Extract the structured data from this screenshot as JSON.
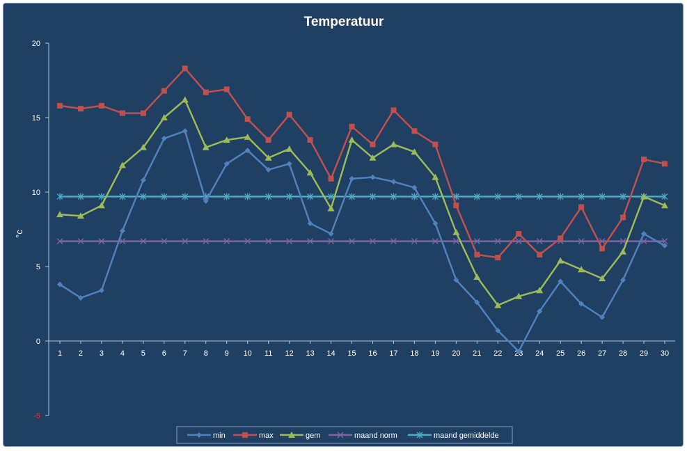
{
  "chart_data": {
    "type": "line",
    "title": "Temperatuur",
    "xlabel": "",
    "ylabel": "°c",
    "ylim": [
      -5,
      20
    ],
    "yticks": [
      20,
      15,
      10,
      5,
      0,
      -5
    ],
    "x": [
      1,
      2,
      3,
      4,
      5,
      6,
      7,
      8,
      9,
      10,
      11,
      12,
      13,
      14,
      15,
      16,
      17,
      18,
      19,
      20,
      21,
      22,
      23,
      24,
      25,
      26,
      27,
      28,
      29,
      30
    ],
    "grid": false,
    "legend_position": "bottom",
    "series": [
      {
        "name": "min",
        "color": "#4f81bd",
        "marker": "diamond",
        "values": [
          3.8,
          2.9,
          3.4,
          7.4,
          10.8,
          13.6,
          14.1,
          9.4,
          11.9,
          12.8,
          11.5,
          11.9,
          7.9,
          7.2,
          10.9,
          11.0,
          10.7,
          10.3,
          7.9,
          4.1,
          2.6,
          0.7,
          -0.7,
          2.0,
          4.0,
          2.5,
          1.6,
          4.1,
          7.2,
          6.4
        ]
      },
      {
        "name": "max",
        "color": "#c0504d",
        "marker": "square",
        "values": [
          15.8,
          15.6,
          15.8,
          15.3,
          15.3,
          16.8,
          18.3,
          16.7,
          16.9,
          14.9,
          13.5,
          15.2,
          13.5,
          10.9,
          14.4,
          13.2,
          15.5,
          14.1,
          13.2,
          9.1,
          5.8,
          5.6,
          7.2,
          5.8,
          6.9,
          9.0,
          6.2,
          8.3,
          12.2,
          11.9
        ]
      },
      {
        "name": "gem",
        "color": "#9bbb59",
        "marker": "triangle",
        "values": [
          8.5,
          8.4,
          9.1,
          11.8,
          13.0,
          15.0,
          16.2,
          13.0,
          13.5,
          13.7,
          12.3,
          12.9,
          11.3,
          8.9,
          13.5,
          12.3,
          13.2,
          12.7,
          11.0,
          7.3,
          4.3,
          2.4,
          3.0,
          3.4,
          5.4,
          4.8,
          4.2,
          6.0,
          9.7,
          9.1
        ]
      },
      {
        "name": "maand norm",
        "color": "#8064a2",
        "marker": "x",
        "values": [
          6.7,
          6.7,
          6.7,
          6.7,
          6.7,
          6.7,
          6.7,
          6.7,
          6.7,
          6.7,
          6.7,
          6.7,
          6.7,
          6.7,
          6.7,
          6.7,
          6.7,
          6.7,
          6.7,
          6.7,
          6.7,
          6.7,
          6.7,
          6.7,
          6.7,
          6.7,
          6.7,
          6.7,
          6.7,
          6.7
        ]
      },
      {
        "name": "maand gemiddelde",
        "color": "#4bacc6",
        "marker": "star",
        "values": [
          9.7,
          9.7,
          9.7,
          9.7,
          9.7,
          9.7,
          9.7,
          9.7,
          9.7,
          9.7,
          9.7,
          9.7,
          9.7,
          9.7,
          9.7,
          9.7,
          9.7,
          9.7,
          9.7,
          9.7,
          9.7,
          9.7,
          9.7,
          9.7,
          9.7,
          9.7,
          9.7,
          9.7,
          9.7,
          9.7
        ]
      }
    ]
  }
}
